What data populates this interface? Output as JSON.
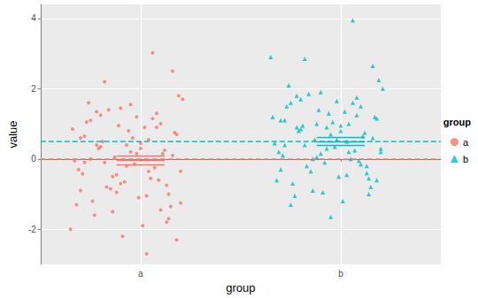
{
  "chart_data": {
    "type": "scatter",
    "x_label": "group",
    "y_label": "value",
    "legend_title": "group",
    "legend": "right",
    "grid": true,
    "xlim": [
      0.5,
      2.5
    ],
    "xticks": [
      {
        "value": 1,
        "label": "a"
      },
      {
        "value": 2,
        "label": "b"
      }
    ],
    "ylim": [
      -3,
      4.4
    ],
    "yticks": [
      -2,
      0,
      2,
      4
    ],
    "series": [
      {
        "name": "a",
        "color": "#F8766D",
        "marker": "circle",
        "center": 1,
        "reference": 0,
        "summary": {
          "mean": -0.03,
          "lower": -0.16,
          "upper": 0.1
        },
        "x": [
          0.66,
          0.71,
          0.75,
          0.68,
          0.79,
          0.83,
          0.87,
          0.9,
          0.93,
          0.96,
          0.99,
          1.02,
          1.05,
          1.08,
          1.11,
          1.14,
          1.17,
          1.2,
          0.7,
          0.74,
          0.78,
          0.82,
          0.86,
          0.89,
          0.92,
          0.95,
          0.98,
          1.01,
          1.04,
          1.07,
          1.1,
          1.13,
          1.16,
          1.19,
          0.67,
          0.72,
          0.76,
          0.8,
          0.84,
          0.88,
          0.91,
          0.94,
          0.97,
          1.0,
          1.03,
          1.06,
          1.09,
          1.12,
          1.15,
          1.18,
          0.69,
          0.73,
          0.77,
          0.81,
          0.85,
          1.21,
          0.65,
          1.06,
          1.16,
          0.82,
          1.03,
          1.13,
          0.95,
          0.88,
          0.75,
          1.2,
          0.7,
          0.9,
          1.0,
          1.1,
          0.8,
          1.18,
          0.98,
          0.86,
          1.08,
          0.72,
          1.14,
          0.93,
          1.04,
          0.78
        ],
        "values": [
          0.85,
          -0.42,
          1.1,
          -1.3,
          0.3,
          -0.8,
          0.05,
          1.45,
          -0.2,
          0.6,
          -1.1,
          0.9,
          -0.55,
          1.3,
          0.15,
          -1.7,
          0.75,
          -0.35,
          -0.9,
          1.6,
          0.4,
          -0.1,
          -1.5,
          0.95,
          -0.65,
          0.2,
          1.2,
          -1.9,
          0.55,
          -0.25,
          1.0,
          -0.75,
          0.1,
          1.8,
          -0.05,
          0.65,
          -1.2,
          0.35,
          1.4,
          -0.45,
          -2.2,
          0.8,
          -0.15,
          0.45,
          -1.05,
          1.15,
          -0.6,
          0.25,
          -1.35,
          0.7,
          -0.3,
          1.05,
          -1.6,
          0.5,
          -0.85,
          1.7,
          -2.0,
          3.02,
          2.5,
          2.2,
          -2.7,
          -1.8,
          1.55,
          -0.95,
          0.0,
          -1.25,
          0.6,
          -0.7,
          0.3,
          -1.45,
          1.25,
          -2.3,
          0.15,
          -0.5,
          0.9,
          -0.1,
          -1.0,
          0.4,
          -0.35,
          1.35
        ]
      },
      {
        "name": "b",
        "color": "#00BFC4",
        "marker": "triangle",
        "center": 2,
        "reference": 0.5,
        "summary": {
          "mean": 0.5,
          "lower": 0.38,
          "upper": 0.62
        },
        "x": [
          1.66,
          1.71,
          1.75,
          1.68,
          1.79,
          1.83,
          1.87,
          1.9,
          1.93,
          1.96,
          1.99,
          2.02,
          2.05,
          2.08,
          2.11,
          2.14,
          2.17,
          2.2,
          1.7,
          1.74,
          1.78,
          1.82,
          1.86,
          1.89,
          1.92,
          1.95,
          1.98,
          2.01,
          2.04,
          2.07,
          2.1,
          2.13,
          2.16,
          2.19,
          1.67,
          1.72,
          1.76,
          1.8,
          1.84,
          1.88,
          1.91,
          1.94,
          1.97,
          2.0,
          2.03,
          2.06,
          2.09,
          2.12,
          2.15,
          2.18,
          1.69,
          1.73,
          1.77,
          1.81,
          1.85,
          2.21,
          1.65,
          2.06,
          2.16,
          1.82,
          2.03,
          2.13,
          1.95,
          1.88,
          1.75,
          2.2,
          1.7,
          1.9,
          2.0,
          2.1,
          1.8,
          2.18,
          1.98,
          1.86,
          2.08,
          1.72,
          2.14,
          1.93,
          2.04,
          1.78
        ],
        "values": [
          1.2,
          0.1,
          1.6,
          -0.6,
          0.8,
          -0.2,
          0.55,
          1.9,
          0.3,
          1.05,
          -0.5,
          1.35,
          0.0,
          1.75,
          0.65,
          -1.0,
          1.2,
          0.2,
          -0.3,
          2.1,
          0.9,
          0.4,
          -0.9,
          1.4,
          -0.1,
          0.7,
          1.65,
          -1.2,
          1.0,
          0.25,
          1.5,
          -0.2,
          0.6,
          2.25,
          0.45,
          1.1,
          -0.7,
          0.85,
          1.85,
          0.05,
          -0.95,
          1.3,
          0.35,
          0.95,
          -0.45,
          1.6,
          -0.05,
          0.75,
          -0.8,
          1.15,
          0.2,
          1.5,
          -1.05,
          0.95,
          -0.35,
          2.0,
          2.9,
          3.95,
          2.65,
          2.85,
          0.5,
          -0.4,
          -1.65,
          1.0,
          -1.3,
          0.3,
          1.1,
          0.15,
          0.8,
          -0.15,
          1.7,
          -0.6,
          0.55,
          0.0,
          1.25,
          0.4,
          -0.55,
          0.9,
          0.2,
          1.8
        ]
      }
    ]
  }
}
